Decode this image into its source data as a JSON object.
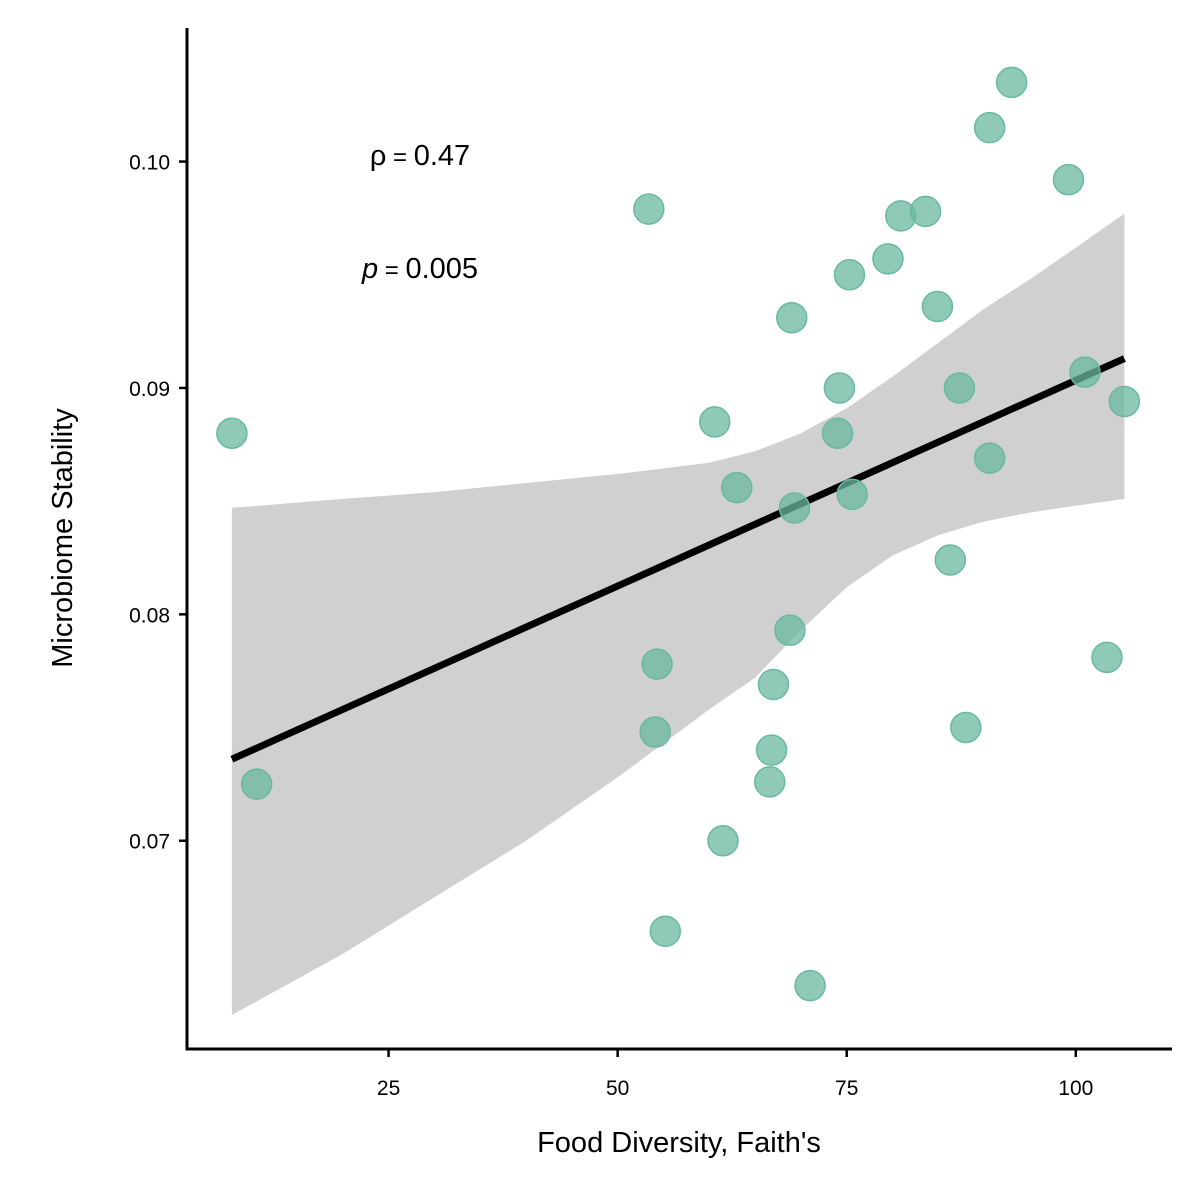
{
  "chart_data": {
    "type": "scatter",
    "title": "",
    "xlabel": "Food Diversity, Faith's",
    "ylabel": "Microbiome Stability",
    "xlim": [
      3,
      110.5
    ],
    "ylim": [
      0.0608,
      0.1059
    ],
    "x_ticks": [
      25,
      50,
      75,
      100
    ],
    "x_tick_labels": [
      "25",
      "50",
      "75",
      "100"
    ],
    "y_ticks": [
      0.07,
      0.08,
      0.09,
      0.1
    ],
    "y_tick_labels": [
      "0.07",
      "0.08",
      "0.09",
      "0.10"
    ],
    "grid": false,
    "legend": "none",
    "point_color": "#69b8a2",
    "line_color": "#000000",
    "band_color": "#d0d0d0",
    "points": [
      {
        "x": 7.9,
        "y": 0.088
      },
      {
        "x": 10.6,
        "y": 0.0725
      },
      {
        "x": 53.4,
        "y": 0.0979
      },
      {
        "x": 54.3,
        "y": 0.0778
      },
      {
        "x": 54.1,
        "y": 0.0748
      },
      {
        "x": 55.2,
        "y": 0.066
      },
      {
        "x": 60.6,
        "y": 0.0885
      },
      {
        "x": 61.5,
        "y": 0.07
      },
      {
        "x": 63.0,
        "y": 0.0856
      },
      {
        "x": 66.8,
        "y": 0.074
      },
      {
        "x": 66.6,
        "y": 0.0726
      },
      {
        "x": 67.0,
        "y": 0.0769
      },
      {
        "x": 68.8,
        "y": 0.0793
      },
      {
        "x": 69.0,
        "y": 0.0931
      },
      {
        "x": 69.3,
        "y": 0.0847
      },
      {
        "x": 71.0,
        "y": 0.0636
      },
      {
        "x": 74.2,
        "y": 0.09
      },
      {
        "x": 74.0,
        "y": 0.088
      },
      {
        "x": 75.3,
        "y": 0.095
      },
      {
        "x": 75.6,
        "y": 0.0853
      },
      {
        "x": 79.5,
        "y": 0.0957
      },
      {
        "x": 80.9,
        "y": 0.0976
      },
      {
        "x": 83.6,
        "y": 0.0978
      },
      {
        "x": 84.9,
        "y": 0.0936
      },
      {
        "x": 86.3,
        "y": 0.0824
      },
      {
        "x": 87.3,
        "y": 0.09
      },
      {
        "x": 88.0,
        "y": 0.075
      },
      {
        "x": 90.6,
        "y": 0.0869
      },
      {
        "x": 90.6,
        "y": 0.1015
      },
      {
        "x": 93.0,
        "y": 0.1035
      },
      {
        "x": 99.2,
        "y": 0.0992
      },
      {
        "x": 101.0,
        "y": 0.0907
      },
      {
        "x": 103.4,
        "y": 0.0781
      },
      {
        "x": 105.3,
        "y": 0.0894
      }
    ],
    "regression": {
      "x": [
        7.9,
        105.3
      ],
      "y": [
        0.0736,
        0.0913
      ]
    },
    "confidence_band": {
      "x": [
        7.9,
        20,
        30,
        40,
        50,
        60,
        65,
        70,
        75,
        80,
        85,
        90,
        95,
        100,
        105.3
      ],
      "upper": [
        0.0847,
        0.0851,
        0.0854,
        0.0858,
        0.0862,
        0.0867,
        0.0872,
        0.088,
        0.0891,
        0.0905,
        0.092,
        0.0935,
        0.0948,
        0.0962,
        0.0977
      ],
      "lower": [
        0.0623,
        0.065,
        0.0675,
        0.07,
        0.0728,
        0.0758,
        0.0772,
        0.0793,
        0.0812,
        0.0826,
        0.0835,
        0.0841,
        0.0845,
        0.0848,
        0.0851
      ]
    },
    "annotations": {
      "rho_symbol": "ρ",
      "rho_eq": " = ",
      "rho_value": "0.47",
      "p_symbol": "p",
      "p_eq": " = ",
      "p_value": "0.005"
    }
  }
}
